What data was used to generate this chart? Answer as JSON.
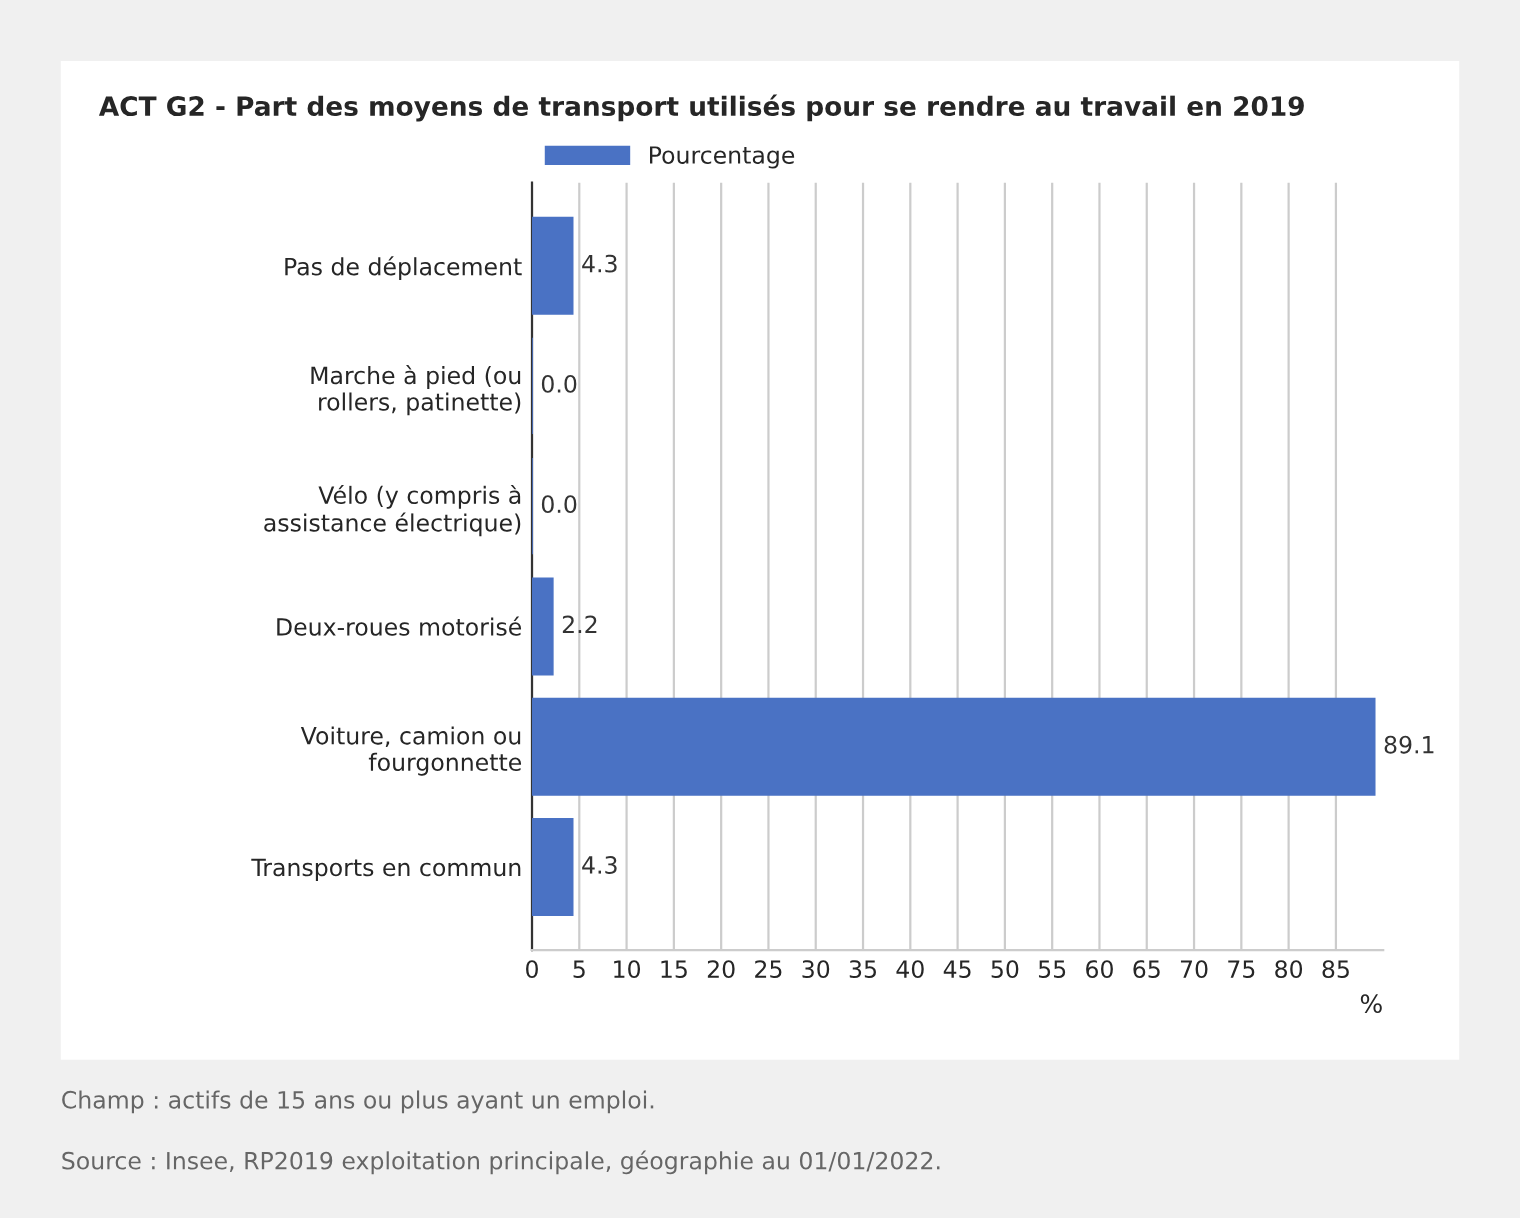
{
  "chart_data": {
    "type": "bar",
    "orientation": "horizontal",
    "title": "ACT G2 - Part des moyens de transport utilisés pour se rendre au travail en 2019",
    "categories": [
      "Pas de déplacement",
      "Marche à pied (ou\nrollers, patinette)",
      "Vélo (y compris à\nassistance électrique)",
      "Deux-roues motorisé",
      "Voiture, camion ou\nfourgonnette",
      "Transports en commun"
    ],
    "series": [
      {
        "name": "Pourcentage",
        "color": "#4a72c4",
        "values": [
          4.3,
          0.0,
          0.0,
          2.2,
          89.1,
          4.3
        ],
        "value_labels": [
          "4.3",
          "0.0",
          "0.0",
          "2.2",
          "89.1",
          "4.3"
        ]
      }
    ],
    "xlabel": "%",
    "xlim": [
      0,
      90
    ],
    "xticks": [
      0,
      5,
      10,
      15,
      20,
      25,
      30,
      35,
      40,
      45,
      50,
      55,
      60,
      65,
      70,
      75,
      80,
      85
    ],
    "grid": "x",
    "legend": "top",
    "annotations": [
      "Champ : actifs de 15 ans ou plus ayant un emploi.",
      "Source : Insee, RP2019 exploitation principale, géographie au 01/01/2022."
    ]
  }
}
